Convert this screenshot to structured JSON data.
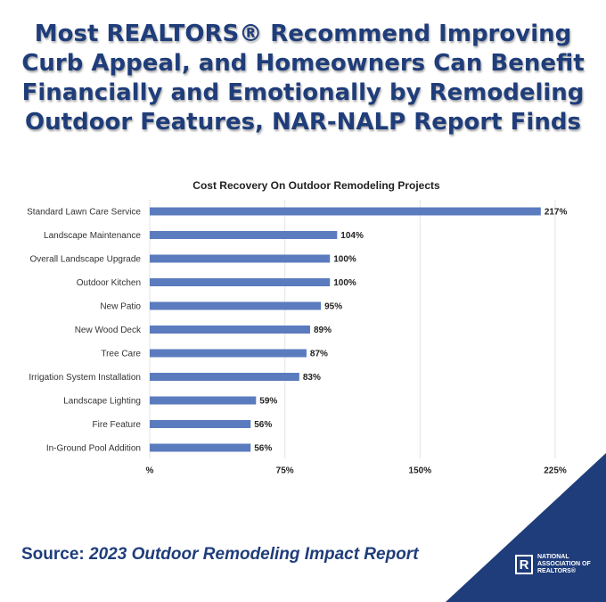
{
  "headline": "Most REALTORS® Recommend Improving Curb Appeal, and Homeowners Can Benefit Financially and Emotionally by Remodeling Outdoor Features, NAR-NALP Report Finds",
  "chart_data": {
    "type": "bar",
    "orientation": "horizontal",
    "title": "Cost Recovery On Outdoor Remodeling Projects",
    "categories": [
      "Standard Lawn Care Service",
      "Landscape Maintenance",
      "Overall Landscape Upgrade",
      "Outdoor Kitchen",
      "New Patio",
      "New Wood Deck",
      "Tree Care",
      "Irrigation System Installation",
      "Landscape Lighting",
      "Fire Feature",
      "In-Ground Pool Addition"
    ],
    "values": [
      217,
      104,
      100,
      100,
      95,
      89,
      87,
      83,
      59,
      56,
      56
    ],
    "value_labels": [
      "217%",
      "104%",
      "100%",
      "100%",
      "95%",
      "89%",
      "87%",
      "83%",
      "59%",
      "56%",
      "56%"
    ],
    "color": "#5b7bbf",
    "xlim": [
      0,
      225
    ],
    "xticks": [
      {
        "value": 0,
        "label": "%"
      },
      {
        "value": 75,
        "label": "75%"
      },
      {
        "value": 150,
        "label": "150%"
      },
      {
        "value": 225,
        "label": "225%"
      }
    ],
    "grid": true
  },
  "source": {
    "prefix": "Source:",
    "title": "2023 Outdoor Remodeling Impact Report"
  },
  "logo": {
    "mark": "R",
    "text": "NATIONAL ASSOCIATION OF REALTORS®"
  }
}
